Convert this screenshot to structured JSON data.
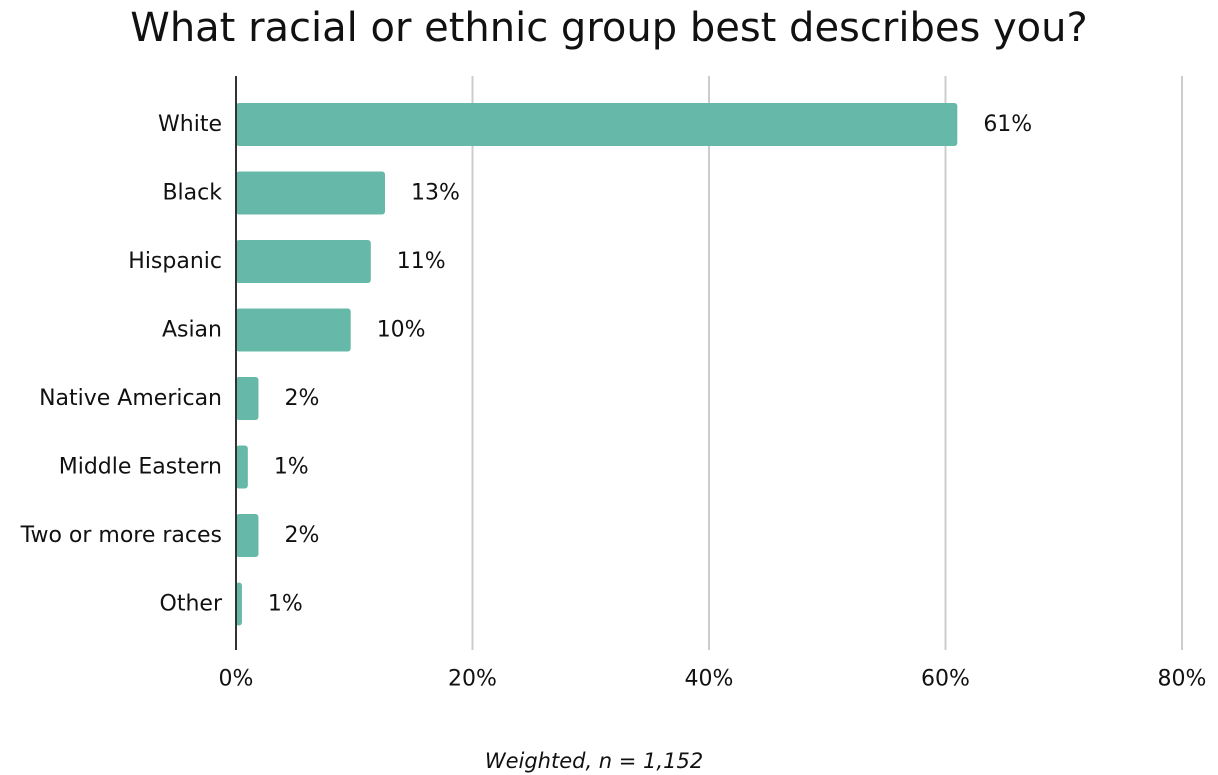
{
  "chart_data": {
    "type": "bar",
    "orientation": "horizontal",
    "title": "What racial or ethnic group best describes you?",
    "categories": [
      "White",
      "Black",
      "Hispanic",
      "Asian",
      "Native American",
      "Middle Eastern",
      "Two or more races",
      "Other"
    ],
    "values": [
      61,
      12.6,
      11.4,
      9.7,
      1.9,
      1.0,
      1.9,
      0.5
    ],
    "data_labels": [
      "61%",
      "13%",
      "11%",
      "10%",
      "2%",
      "1%",
      "2%",
      "1%"
    ],
    "xlim": [
      0,
      80
    ],
    "x_ticks": [
      0,
      20,
      40,
      60,
      80
    ],
    "x_tick_labels": [
      "0%",
      "20%",
      "40%",
      "60%",
      "80%"
    ],
    "grid": "vertical",
    "legend": "none",
    "bar_color": "#66b8a8",
    "grid_color": "#cccccc",
    "axis_color": "#333333",
    "footnote": "Weighted, n = 1,152"
  }
}
